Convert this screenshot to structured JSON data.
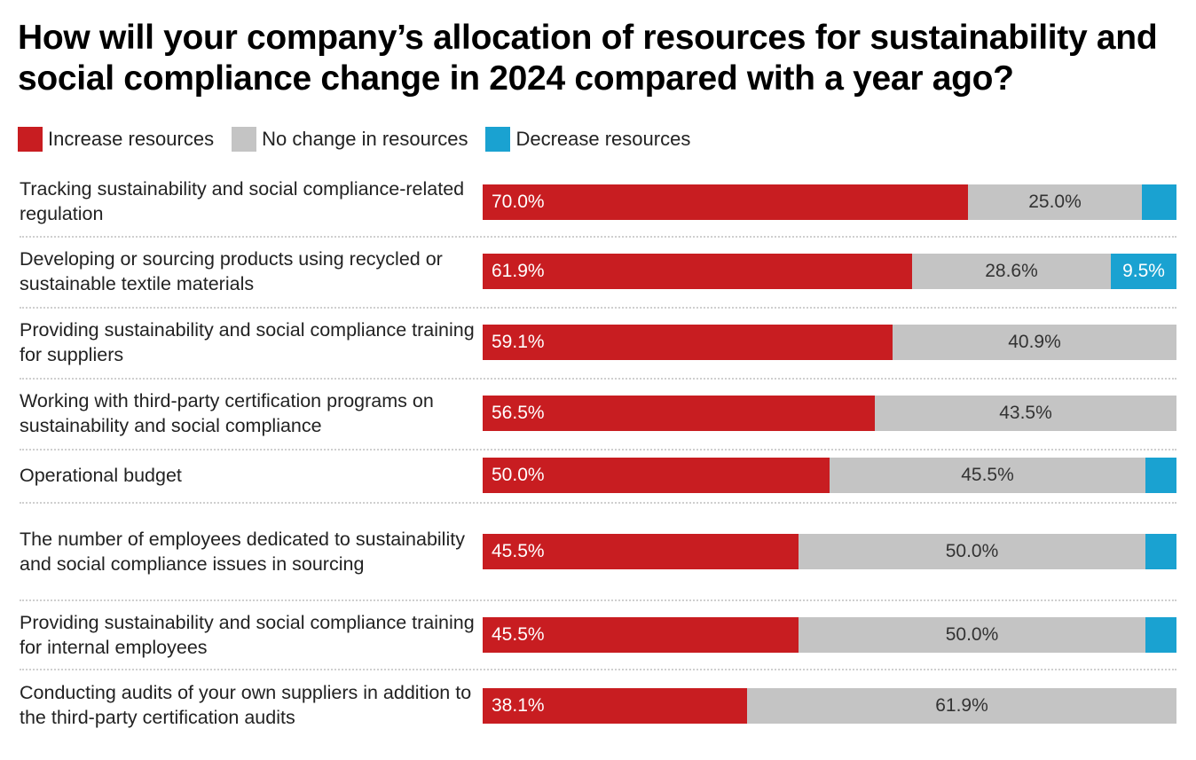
{
  "chart_data": {
    "type": "bar",
    "orientation": "horizontal",
    "stacked": true,
    "title": "How will your company’s allocation of resources for sustainability and social compliance change in 2024 compared with a year ago?",
    "legend": [
      {
        "label": "Increase resources",
        "color": "#c81d21"
      },
      {
        "label": "No change in resources",
        "color": "#c4c4c4"
      },
      {
        "label": "Decrease resources",
        "color": "#1aa2d1"
      }
    ],
    "legend_position": "top-left",
    "categories": [
      "Tracking sustainability and social compliance-related regulation",
      "Developing or sourcing products using recycled or sustainable textile materials",
      "Providing sustainability and social compliance training for suppliers",
      "Working with third-party certification programs on sustainability and social compliance",
      "Operational budget",
      "The number of employees dedicated to sustainability and social compliance issues in sourcing",
      "Providing sustainability and social compliance training for internal employees",
      "Conducting audits of your own suppliers in addition to the third-party certification audits"
    ],
    "series": [
      {
        "name": "Increase resources",
        "values": [
          70.0,
          61.9,
          59.1,
          56.5,
          50.0,
          45.5,
          45.5,
          38.1
        ],
        "labels": [
          "70.0%",
          "61.9%",
          "59.1%",
          "56.5%",
          "50.0%",
          "45.5%",
          "45.5%",
          "38.1%"
        ]
      },
      {
        "name": "No change in resources",
        "values": [
          25.0,
          28.6,
          40.9,
          43.5,
          45.5,
          50.0,
          50.0,
          61.9
        ],
        "labels": [
          "25.0%",
          "28.6%",
          "40.9%",
          "43.5%",
          "45.5%",
          "50.0%",
          "50.0%",
          "61.9%"
        ]
      },
      {
        "name": "Decrease resources",
        "values": [
          5.0,
          9.5,
          0,
          0,
          4.5,
          4.5,
          4.5,
          0
        ],
        "labels": [
          "",
          "9.5%",
          "",
          "",
          "",
          "",
          "",
          ""
        ]
      }
    ],
    "xlim": [
      0,
      100
    ],
    "grid": false
  }
}
